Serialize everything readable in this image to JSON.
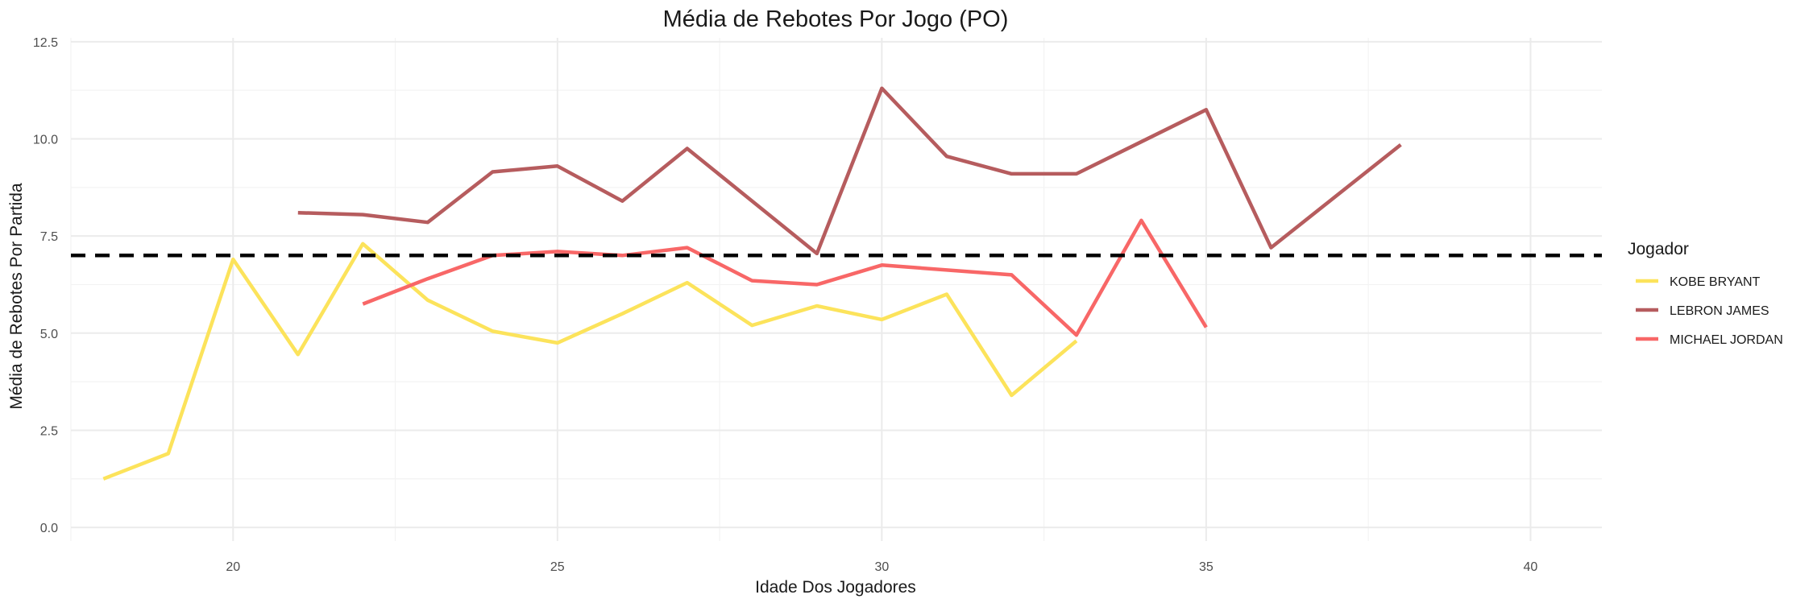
{
  "chart_data": {
    "type": "line",
    "title": "Média de Rebotes Por Jogo (PO)",
    "xlabel": "Idade Dos Jogadores",
    "ylabel": "Média de Rebotes Por Partida",
    "xlim": [
      17.5,
      41.1
    ],
    "ylim": [
      -0.35,
      12.6
    ],
    "x_ticks": [
      20,
      25,
      30,
      35,
      40
    ],
    "x_tick_labels": [
      "20",
      "25",
      "30",
      "35",
      "40"
    ],
    "y_ticks": [
      0,
      2.5,
      5,
      7.5,
      10,
      12.5
    ],
    "y_tick_labels": [
      "0.0",
      "2.5",
      "5.0",
      "7.5",
      "10.0",
      "12.5"
    ],
    "grid": true,
    "reference_line": {
      "y": 7.0,
      "style": "dashed",
      "color": "#000000"
    },
    "legend": {
      "title": "Jogador",
      "position": "right"
    },
    "series": [
      {
        "name": "KOBE BRYANT",
        "color": "#FCE35B",
        "x": [
          18,
          19,
          20,
          21,
          22,
          23,
          24,
          25,
          26,
          27,
          28,
          29,
          30,
          31,
          32,
          33
        ],
        "y": [
          1.25,
          1.9,
          6.9,
          4.45,
          7.3,
          5.85,
          5.05,
          4.75,
          5.5,
          6.3,
          5.2,
          5.7,
          5.35,
          6.0,
          3.4,
          4.8
        ]
      },
      {
        "name": "LEBRON JAMES",
        "color": "#B65C5E",
        "x": [
          21,
          22,
          23,
          24,
          25,
          26,
          27,
          29,
          30,
          31,
          32,
          33,
          35,
          36,
          38
        ],
        "y": [
          8.1,
          8.05,
          7.85,
          9.15,
          9.3,
          8.4,
          9.75,
          7.05,
          11.3,
          9.55,
          9.1,
          9.1,
          10.75,
          7.2,
          9.85
        ]
      },
      {
        "name": "MICHAEL JORDAN",
        "color": "#F86767",
        "x": [
          22,
          23,
          24,
          25,
          26,
          27,
          28,
          29,
          30,
          32,
          33,
          34,
          35
        ],
        "y": [
          5.75,
          6.4,
          7.0,
          7.1,
          7.0,
          7.2,
          6.35,
          6.25,
          6.75,
          6.5,
          4.95,
          7.9,
          5.15
        ]
      }
    ]
  }
}
